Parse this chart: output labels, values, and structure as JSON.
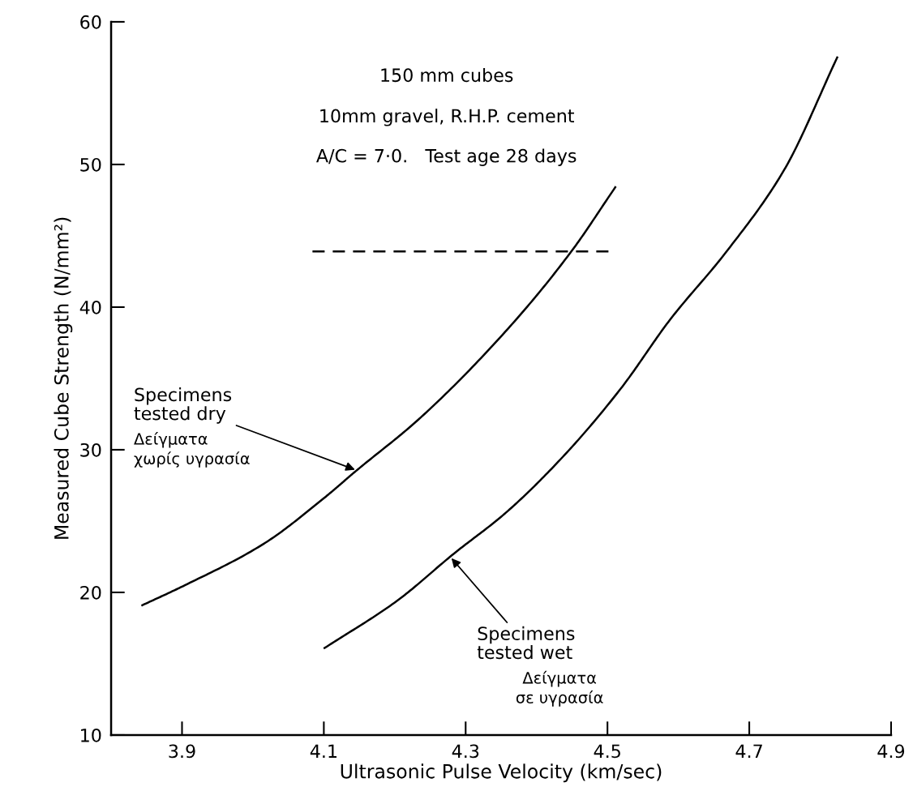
{
  "chart_data": {
    "type": "line",
    "xlabel": "Ultrasonic Pulse Velocity (km/sec)",
    "ylabel": "Measured Cube Strength (N/mm²)",
    "xlim": [
      3.8,
      4.9
    ],
    "ylim": [
      10,
      60
    ],
    "xticks": [
      3.9,
      4.1,
      4.3,
      4.5,
      4.7,
      4.9
    ],
    "yticks": [
      10,
      20,
      30,
      40,
      50,
      60
    ],
    "grid": false,
    "marker": "none",
    "series": [
      {
        "color": "#000000",
        "line_style": "solid",
        "x": [
          3.844,
          3.904,
          4.015,
          4.1,
          4.145,
          4.233,
          4.36,
          4.449,
          4.511
        ],
        "values": [
          19.1,
          20.5,
          23.4,
          26.6,
          28.5,
          32.1,
          38.5,
          43.9,
          48.4
        ]
      },
      {
        "color": "#000000",
        "line_style": "solid",
        "x": [
          4.101,
          4.203,
          4.283,
          4.357,
          4.437,
          4.519,
          4.588,
          4.668,
          4.749,
          4.824
        ],
        "values": [
          16.1,
          19.4,
          22.7,
          25.6,
          29.5,
          34.3,
          39.1,
          43.9,
          49.6,
          57.5
        ]
      },
      {
        "color": "#000000",
        "line_style": "dashed",
        "x": [
          4.084,
          4.503
        ],
        "values": [
          43.9,
          43.9
        ]
      }
    ],
    "annotations": [
      "150 mm cubes",
      "10mm gravel, R.H.P. cement",
      "A/C = 7·0.   Test age 28 days",
      {
        "text": "Specimens\ntested dry",
        "x": 4.144,
        "y": 28.6
      },
      "Δείγματα\nχωρίς υγρασία",
      {
        "text": "Specimens\ntested wet",
        "x": 4.28,
        "y": 22.4
      },
      "Δείγματα\nσε υγρασία"
    ]
  }
}
